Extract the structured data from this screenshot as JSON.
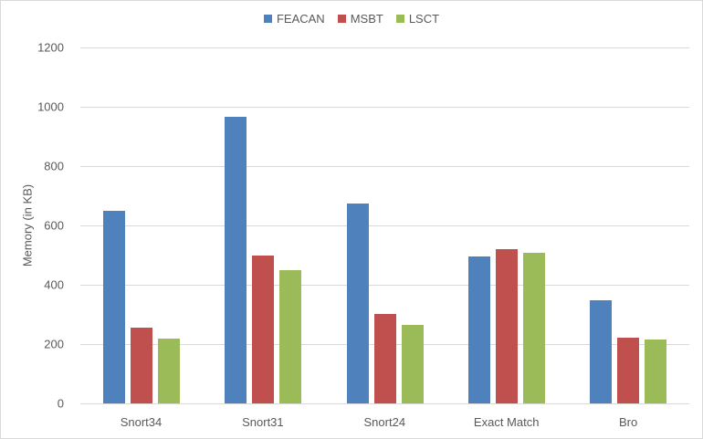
{
  "chart_data": {
    "type": "bar",
    "title": "",
    "xlabel": "",
    "ylabel": "Memory (in KB)",
    "ylim": [
      0,
      1200
    ],
    "yticks": [
      0,
      200,
      400,
      600,
      800,
      1000,
      1200
    ],
    "grid": true,
    "legend_position": "top",
    "categories": [
      "Snort34",
      "Snort31",
      "Snort24",
      "Exact Match",
      "Bro"
    ],
    "series": [
      {
        "name": "FEACAN",
        "color": "#4f81bd",
        "values": [
          650,
          967,
          675,
          495,
          348
        ]
      },
      {
        "name": "MSBT",
        "color": "#c0504d",
        "values": [
          256,
          498,
          302,
          520,
          222
        ]
      },
      {
        "name": "LSCT",
        "color": "#9bbb59",
        "values": [
          218,
          449,
          265,
          508,
          215
        ]
      }
    ]
  }
}
